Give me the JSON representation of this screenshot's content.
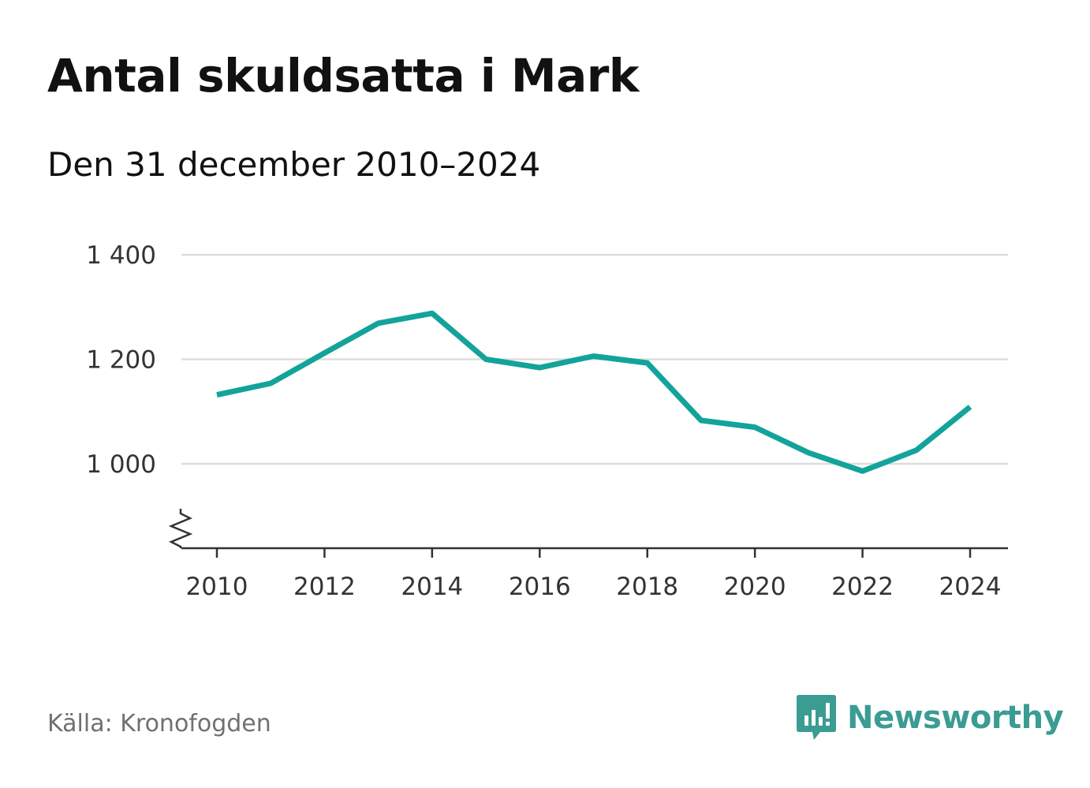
{
  "header": {
    "title": "Antal skuldsatta i Mark",
    "subtitle": "Den 31 december 2010–2024"
  },
  "footer": {
    "source": "Källa: Kronofogden",
    "brand": "Newsworthy",
    "brand_icon": "bar-chart-speech-bubble-icon",
    "brand_color": "#3a9c93"
  },
  "colors": {
    "line": "#13a39a",
    "grid": "#dddddd",
    "axis": "#333333"
  },
  "chart_data": {
    "type": "line",
    "title": "Antal skuldsatta i Mark",
    "subtitle": "Den 31 december 2010–2024",
    "xlabel": "",
    "ylabel": "",
    "x": [
      2010,
      2011,
      2012,
      2013,
      2014,
      2015,
      2016,
      2017,
      2018,
      2019,
      2020,
      2021,
      2022,
      2023,
      2024
    ],
    "series": [
      {
        "name": "Antal skuldsatta",
        "values": [
          1132,
          1154,
          1212,
          1269,
          1288,
          1200,
          1184,
          1206,
          1193,
          1083,
          1070,
          1021,
          986,
          1026,
          1109
        ]
      }
    ],
    "xticks": [
      2010,
      2012,
      2014,
      2016,
      2018,
      2020,
      2022,
      2024
    ],
    "xtick_labels": [
      "2010",
      "2012",
      "2014",
      "2016",
      "2018",
      "2020",
      "2022",
      "2024"
    ],
    "yticks": [
      1000,
      1200,
      1400
    ],
    "ytick_labels": [
      "1 000",
      "1 200",
      "1 400"
    ],
    "xlim": [
      2010,
      2024
    ],
    "ylim": [
      840,
      1400
    ],
    "grid": true,
    "axis_break": true,
    "legend": "none"
  }
}
